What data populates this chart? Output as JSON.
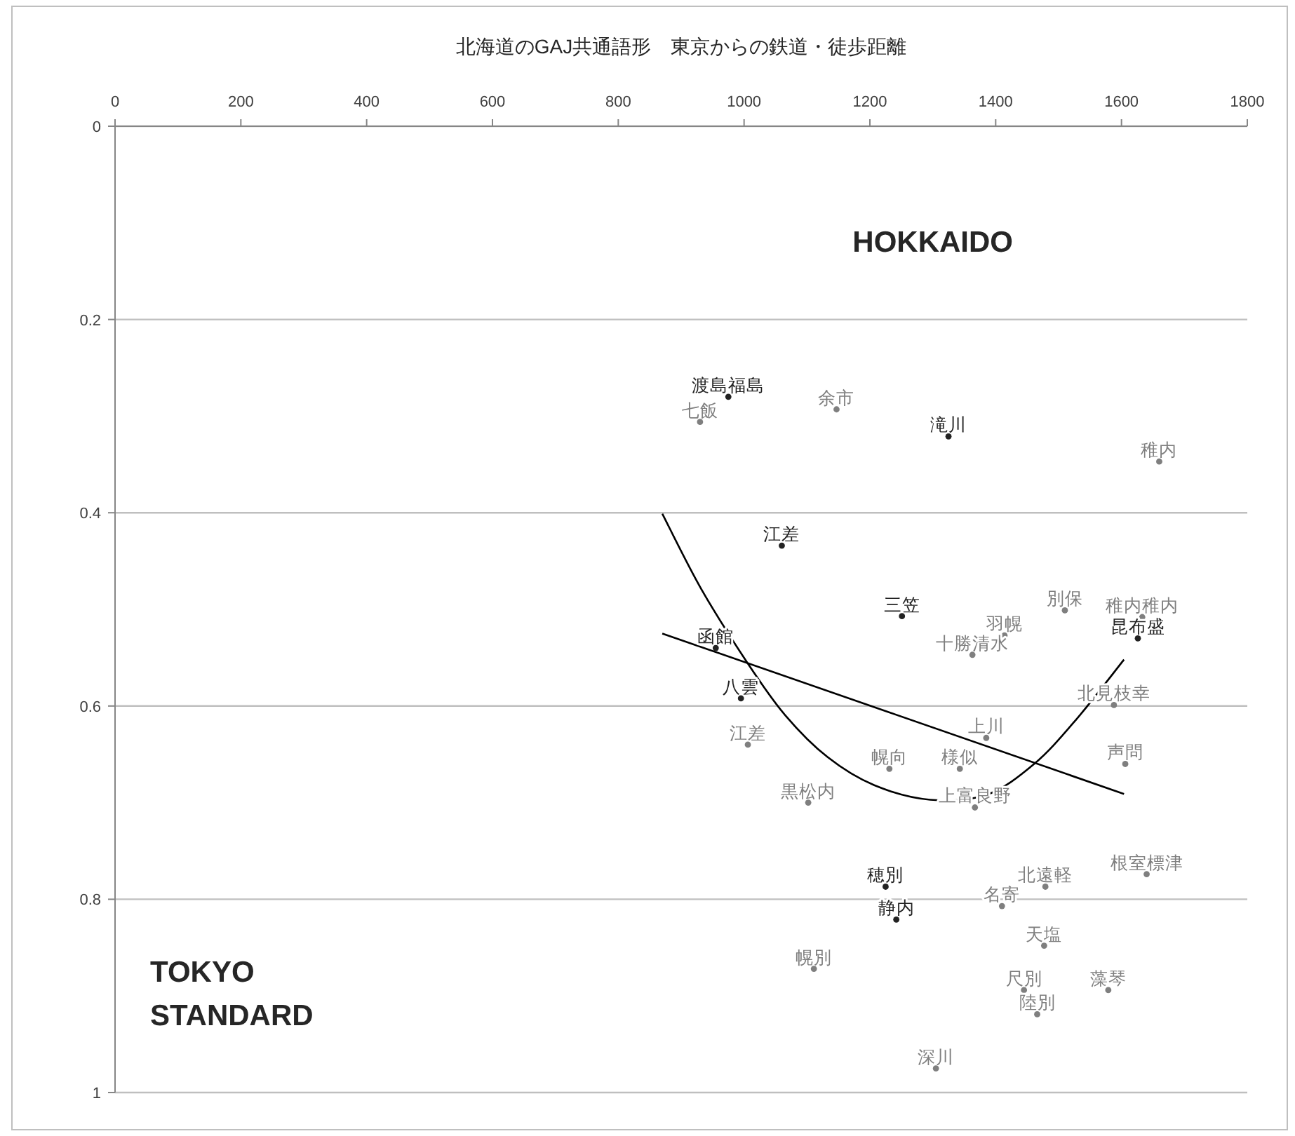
{
  "chart_data": {
    "type": "scatter",
    "title": "北海道のGAJ共通語形　東京からの鉄道・徒歩距離",
    "xlim": [
      0,
      1800
    ],
    "xticks": [
      0,
      200,
      400,
      600,
      800,
      1000,
      1200,
      1400,
      1600,
      1800
    ],
    "ylim": [
      1,
      0
    ],
    "yticks": [
      0,
      0.2,
      0.4,
      0.6,
      0.8,
      1
    ],
    "grid": "y",
    "annotations": [
      "HOKKAIDO",
      "TOKYO STANDARD"
    ],
    "series": [
      {
        "type": "scatter",
        "marker": "circle",
        "color": "#7f7f7f",
        "x": [
          930,
          1147,
          1660,
          1510,
          1633,
          1414,
          1363,
          1588,
          1006,
          1385,
          1231,
          1343,
          1606,
          1102,
          1367,
          1640,
          1479,
          1410,
          1477,
          1111,
          1445,
          1579,
          1466,
          1305
        ],
        "values": [
          0.306,
          0.293,
          0.347,
          0.501,
          0.508,
          0.527,
          0.547,
          0.599,
          0.64,
          0.633,
          0.665,
          0.665,
          0.66,
          0.7,
          0.705,
          0.774,
          0.787,
          0.807,
          0.848,
          0.872,
          0.894,
          0.894,
          0.919,
          0.975
        ],
        "value_labels": [
          "七飯",
          "余市",
          "稚内",
          "別保",
          "稚内稚内",
          "羽幌",
          "十勝清水",
          "北見枝幸",
          "江差",
          "上川",
          "幌向",
          "様似",
          "声問",
          "黒松内",
          "上富良野",
          "根室標津",
          "北遠軽",
          "名寄",
          "天塩",
          "幌別",
          "尺別",
          "藻琴",
          "陸別",
          "深川"
        ]
      },
      {
        "type": "scatter",
        "marker": "circle",
        "color": "#222222",
        "x": [
          975,
          1325,
          1060,
          1251,
          955,
          995,
          1626,
          1225,
          1242
        ],
        "values": [
          0.28,
          0.321,
          0.434,
          0.507,
          0.54,
          0.592,
          0.53,
          0.787,
          0.821
        ],
        "value_labels": [
          "渡島福島",
          "滝川",
          "江差",
          "三笠",
          "函館",
          "八雲",
          "昆布盛",
          "穂別",
          "静内"
        ]
      },
      {
        "type": "line",
        "color": "#000000",
        "x": [
          870,
          1604
        ],
        "values": [
          0.525,
          0.691
        ]
      },
      {
        "type": "line",
        "color": "#000000",
        "x": [
          870,
          932,
          1006,
          1066,
          1133,
          1207,
          1296,
          1385,
          1461,
          1528,
          1604
        ],
        "values": [
          0.401,
          0.479,
          0.556,
          0.61,
          0.653,
          0.682,
          0.697,
          0.692,
          0.66,
          0.614,
          0.552
        ]
      }
    ]
  }
}
